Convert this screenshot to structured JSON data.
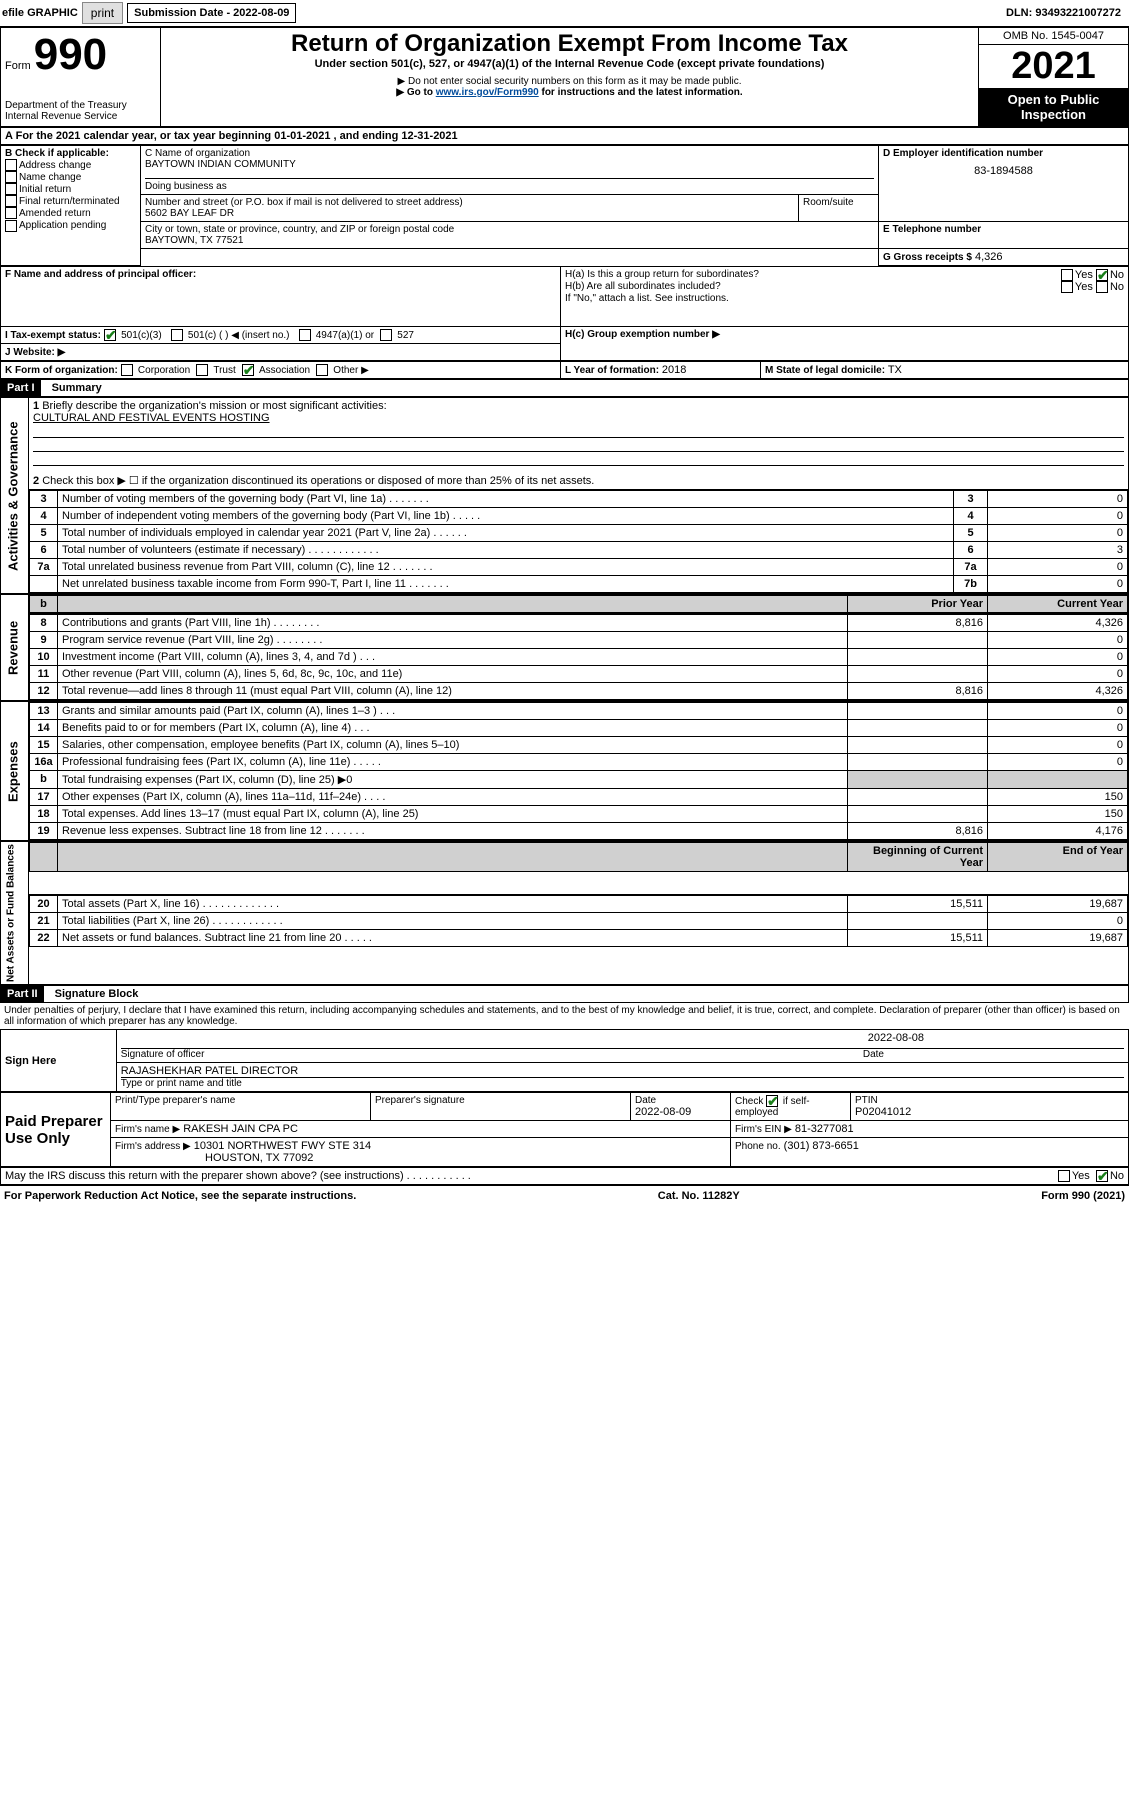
{
  "toolbar": {
    "efile": "efile GRAPHIC",
    "print": "print",
    "submission_label": "Submission Date - 2022-08-09",
    "dln": "DLN: 93493221007272"
  },
  "header": {
    "form_word": "Form",
    "form_number": "990",
    "dept": "Department of the Treasury",
    "irs": "Internal Revenue Service",
    "title": "Return of Organization Exempt From Income Tax",
    "subtitle": "Under section 501(c), 527, or 4947(a)(1) of the Internal Revenue Code (except private foundations)",
    "note1": "▶ Do not enter social security numbers on this form as it may be made public.",
    "note2_pre": "▶ Go to ",
    "note2_link": "www.irs.gov/Form990",
    "note2_post": " for instructions and the latest information.",
    "omb": "OMB No. 1545-0047",
    "year": "2021",
    "open": "Open to Public Inspection"
  },
  "A": {
    "text": "For the 2021 calendar year, or tax year beginning ",
    "begin": "01-01-2021",
    "mid": " , and ending ",
    "end": "12-31-2021"
  },
  "B": {
    "label": "B Check if applicable:",
    "items": [
      "Address change",
      "Name change",
      "Initial return",
      "Final return/terminated",
      "Amended return",
      "Application pending"
    ]
  },
  "C": {
    "name_label": "C Name of organization",
    "name": "BAYTOWN INDIAN COMMUNITY",
    "dba_label": "Doing business as",
    "street_label": "Number and street (or P.O. box if mail is not delivered to street address)",
    "room_label": "Room/suite",
    "street": "5602 BAY LEAF DR",
    "city_label": "City or town, state or province, country, and ZIP or foreign postal code",
    "city": "BAYTOWN, TX  77521"
  },
  "D": {
    "label": "D Employer identification number",
    "value": "83-1894588"
  },
  "E": {
    "label": "E Telephone number"
  },
  "G": {
    "label": "G Gross receipts $",
    "value": "4,326"
  },
  "F": {
    "label": "F  Name and address of principal officer:"
  },
  "H": {
    "a": "H(a)  Is this a group return for subordinates?",
    "b": "H(b)  Are all subordinates included?",
    "b_note": "If \"No,\" attach a list. See instructions.",
    "c": "H(c)  Group exemption number ▶",
    "yes": "Yes",
    "no": "No"
  },
  "I": {
    "label": "I  Tax-exempt status:",
    "opt1": "501(c)(3)",
    "opt2": "501(c) (   ) ◀ (insert no.)",
    "opt3": "4947(a)(1) or",
    "opt4": "527"
  },
  "J": {
    "label": "J  Website: ▶"
  },
  "K": {
    "label": "K Form of organization:",
    "opts": [
      "Corporation",
      "Trust",
      "Association",
      "Other ▶"
    ]
  },
  "L": {
    "label": "L Year of formation: ",
    "value": "2018"
  },
  "M": {
    "label": "M State of legal domicile: ",
    "value": "TX"
  },
  "part1": {
    "label": "Part I",
    "title": "Summary",
    "vert_gov": "Activities & Governance",
    "vert_rev": "Revenue",
    "vert_exp": "Expenses",
    "vert_net": "Net Assets or Fund Balances",
    "line1": "Briefly describe the organization's mission or most significant activities:",
    "line1_val": "CULTURAL AND FESTIVAL EVENTS HOSTING",
    "line2": "Check this box ▶ ☐  if the organization discontinued its operations or disposed of more than 25% of its net assets.",
    "prior": "Prior Year",
    "current": "Current Year",
    "boy": "Beginning of Current Year",
    "eoy": "End of Year",
    "rows_gov": [
      {
        "n": "3",
        "d": "Number of voting members of the governing body (Part VI, line 1a)   .   .   .   .   .   .   .",
        "b": "3",
        "v": "0"
      },
      {
        "n": "4",
        "d": "Number of independent voting members of the governing body (Part VI, line 1b)  .   .   .   .   .",
        "b": "4",
        "v": "0"
      },
      {
        "n": "5",
        "d": "Total number of individuals employed in calendar year 2021 (Part V, line 2a)  .   .   .   .   .   .",
        "b": "5",
        "v": "0"
      },
      {
        "n": "6",
        "d": "Total number of volunteers (estimate if necessary)   .   .   .   .   .   .   .   .   .   .   .   .",
        "b": "6",
        "v": "3"
      },
      {
        "n": "7a",
        "d": "Total unrelated business revenue from Part VIII, column (C), line 12   .   .   .   .   .   .   .",
        "b": "7a",
        "v": "0"
      },
      {
        "n": "",
        "d": "Net unrelated business taxable income from Form 990-T, Part I, line 11   .   .   .   .   .   .   .",
        "b": "7b",
        "v": "0"
      }
    ],
    "rows_rev": [
      {
        "n": "8",
        "d": "Contributions and grants (Part VIII, line 1h)   .   .   .   .   .   .   .   .",
        "p": "8,816",
        "c": "4,326"
      },
      {
        "n": "9",
        "d": "Program service revenue (Part VIII, line 2g)   .   .   .   .   .   .   .   .",
        "p": "",
        "c": "0"
      },
      {
        "n": "10",
        "d": "Investment income (Part VIII, column (A), lines 3, 4, and 7d )   .   .   .",
        "p": "",
        "c": "0"
      },
      {
        "n": "11",
        "d": "Other revenue (Part VIII, column (A), lines 5, 6d, 8c, 9c, 10c, and 11e)",
        "p": "",
        "c": "0"
      },
      {
        "n": "12",
        "d": "Total revenue—add lines 8 through 11 (must equal Part VIII, column (A), line 12)",
        "p": "8,816",
        "c": "4,326"
      }
    ],
    "rows_exp": [
      {
        "n": "13",
        "d": "Grants and similar amounts paid (Part IX, column (A), lines 1–3 )   .   .   .",
        "p": "",
        "c": "0"
      },
      {
        "n": "14",
        "d": "Benefits paid to or for members (Part IX, column (A), line 4)   .   .   .",
        "p": "",
        "c": "0"
      },
      {
        "n": "15",
        "d": "Salaries, other compensation, employee benefits (Part IX, column (A), lines 5–10)",
        "p": "",
        "c": "0"
      },
      {
        "n": "16a",
        "d": "Professional fundraising fees (Part IX, column (A), line 11e)   .   .   .   .   .",
        "p": "",
        "c": "0"
      },
      {
        "n": "b",
        "d": "Total fundraising expenses (Part IX, column (D), line 25) ▶0",
        "p": "GRAY",
        "c": "GRAY"
      },
      {
        "n": "17",
        "d": "Other expenses (Part IX, column (A), lines 11a–11d, 11f–24e)   .   .   .   .",
        "p": "",
        "c": "150"
      },
      {
        "n": "18",
        "d": "Total expenses. Add lines 13–17 (must equal Part IX, column (A), line 25)",
        "p": "",
        "c": "150"
      },
      {
        "n": "19",
        "d": "Revenue less expenses. Subtract line 18 from line 12   .   .   .   .   .   .   .",
        "p": "8,816",
        "c": "4,176"
      }
    ],
    "rows_net": [
      {
        "n": "20",
        "d": "Total assets (Part X, line 16)   .   .   .   .   .   .   .   .   .   .   .   .   .",
        "p": "15,511",
        "c": "19,687"
      },
      {
        "n": "21",
        "d": "Total liabilities (Part X, line 26)   .   .   .   .   .   .   .   .   .   .   .   .",
        "p": "",
        "c": "0"
      },
      {
        "n": "22",
        "d": "Net assets or fund balances. Subtract line 21 from line 20   .   .   .   .   .",
        "p": "15,511",
        "c": "19,687"
      }
    ]
  },
  "part2": {
    "label": "Part II",
    "title": "Signature Block",
    "decl": "Under penalties of perjury, I declare that I have examined this return, including accompanying schedules and statements, and to the best of my knowledge and belief, it is true, correct, and complete. Declaration of preparer (other than officer) is based on all information of which preparer has any knowledge.",
    "sign_here": "Sign Here",
    "sig_officer": "Signature of officer",
    "date": "Date",
    "date_val": "2022-08-08",
    "officer_name": "RAJASHEKHAR PATEL  DIRECTOR",
    "type_name": "Type or print name and title",
    "paid": "Paid Preparer Use Only",
    "prep_name_label": "Print/Type preparer's name",
    "prep_sig_label": "Preparer's signature",
    "prep_date_label": "Date",
    "prep_date": "2022-08-09",
    "check_if": "Check ☑ if self-employed",
    "ptin_label": "PTIN",
    "ptin": "P02041012",
    "firm_name_label": "Firm's name    ▶",
    "firm_name": "RAKESH JAIN CPA PC",
    "firm_ein_label": "Firm's EIN ▶",
    "firm_ein": "81-3277081",
    "firm_addr_label": "Firm's address ▶",
    "firm_addr1": "10301 NORTHWEST FWY STE 314",
    "firm_addr2": "HOUSTON, TX  77092",
    "phone_label": "Phone no.",
    "phone": "(301) 873-6651",
    "discuss": "May the IRS discuss this return with the preparer shown above? (see instructions)   .   .   .   .   .   .   .   .   .   .   ."
  },
  "footer": {
    "left": "For Paperwork Reduction Act Notice, see the separate instructions.",
    "mid": "Cat. No. 11282Y",
    "right": "Form 990 (2021)"
  }
}
